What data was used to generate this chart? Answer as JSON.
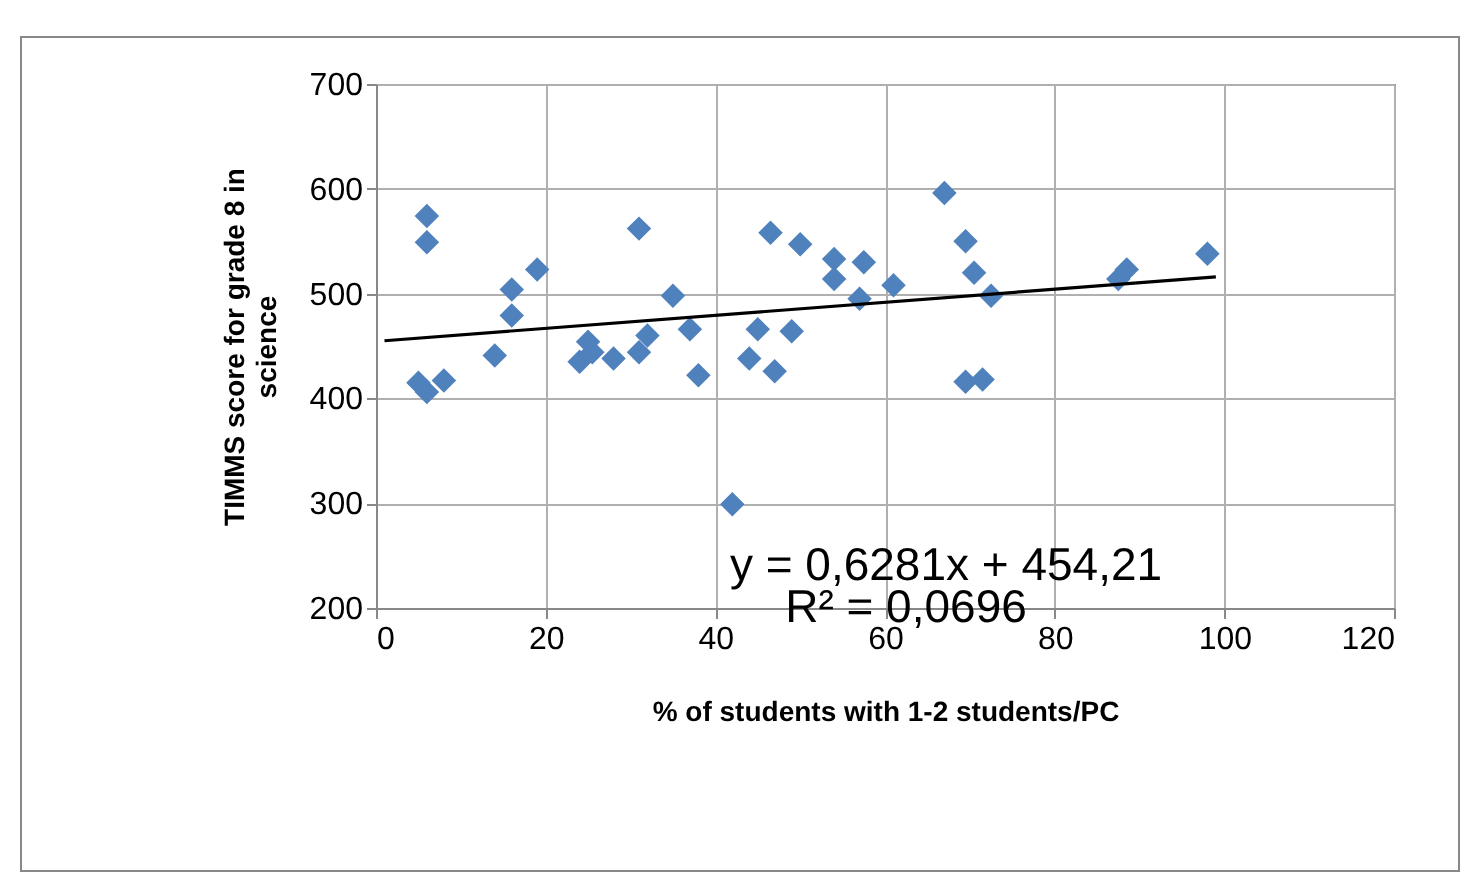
{
  "chart_data": {
    "type": "scatter",
    "xlabel": "% of students with 1-2 students/PC",
    "ylabel": "TIMMS score for grade 8 in science",
    "xlim": [
      0,
      120
    ],
    "xticks": [
      0,
      20,
      40,
      60,
      80,
      100,
      120
    ],
    "ylim": [
      200,
      700
    ],
    "yticks": [
      200,
      300,
      400,
      500,
      600,
      700
    ],
    "grid": true,
    "annotations": [
      "y = 0,6281x + 454,21",
      "R² = 0,0696"
    ],
    "series": [
      {
        "marker": "diamond",
        "color": "#4f81bd",
        "x": [
          5,
          6,
          8,
          6,
          6,
          14,
          16,
          16,
          19,
          24,
          25,
          25.5,
          28,
          31,
          31,
          32,
          35,
          37,
          38,
          42,
          44,
          45,
          47,
          46.5,
          49,
          50,
          54,
          54,
          57,
          57.5,
          61,
          67,
          69.5,
          70.5,
          72.5,
          69.5,
          71.5,
          87.5,
          88.5,
          98
        ],
        "values": [
          415,
          406,
          417,
          574,
          549,
          441,
          504,
          479,
          523,
          435,
          454,
          444,
          438,
          562,
          444,
          460,
          498,
          466,
          422,
          299,
          438,
          466,
          426,
          558,
          464,
          547,
          533,
          514,
          495,
          530,
          508,
          596,
          550,
          520,
          498,
          416,
          418,
          514,
          523,
          538
        ]
      },
      {
        "type": "line",
        "color": "#000000",
        "x": [
          1,
          99
        ],
        "values": [
          455,
          516
        ]
      }
    ]
  }
}
